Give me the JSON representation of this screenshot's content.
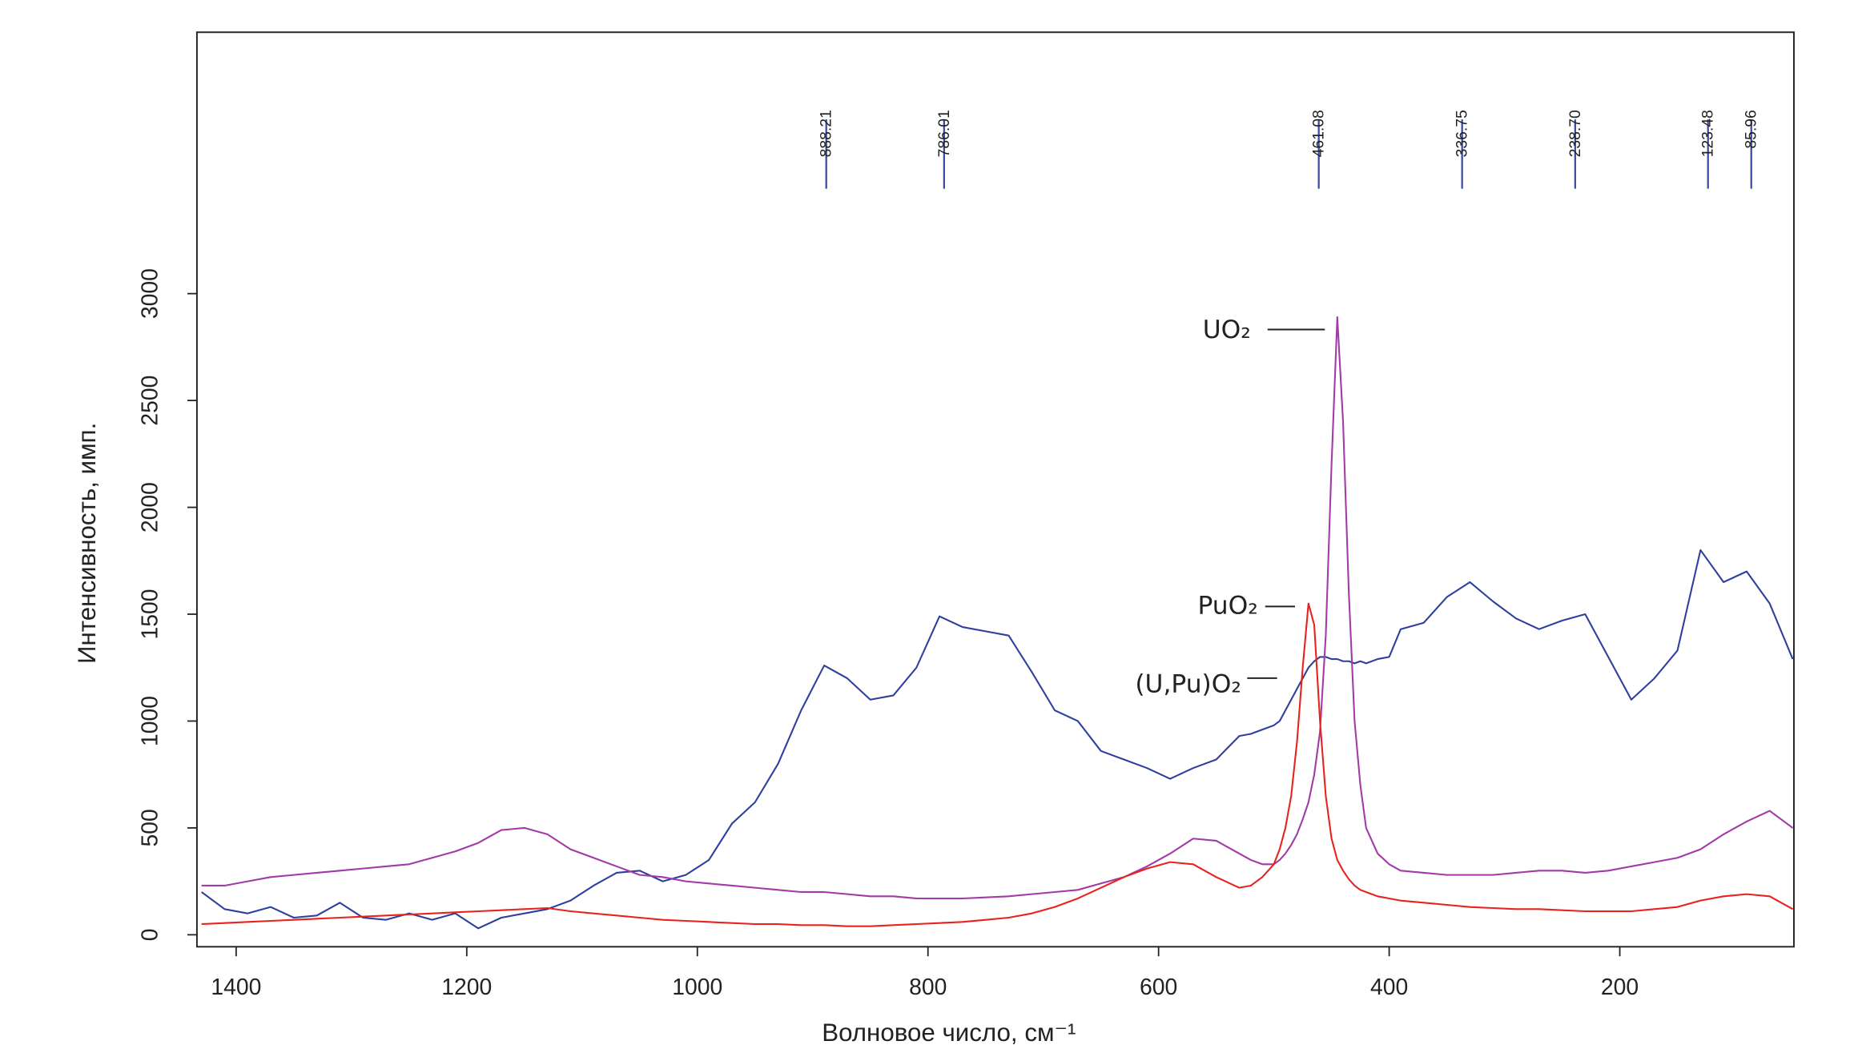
{
  "chart_data": {
    "type": "line",
    "xlabel": "Волновое число, см⁻¹",
    "ylabel": "Интенсивность, имп.",
    "x": [
      1430,
      1410,
      1390,
      1370,
      1350,
      1330,
      1310,
      1290,
      1270,
      1250,
      1230,
      1210,
      1190,
      1170,
      1150,
      1130,
      1110,
      1090,
      1070,
      1050,
      1030,
      1010,
      990,
      970,
      950,
      930,
      910,
      890,
      870,
      850,
      830,
      810,
      790,
      770,
      750,
      730,
      710,
      690,
      670,
      650,
      630,
      610,
      590,
      570,
      550,
      530,
      520,
      510,
      500,
      495,
      490,
      485,
      480,
      475,
      470,
      465,
      460,
      455,
      450,
      445,
      440,
      435,
      430,
      425,
      420,
      410,
      400,
      390,
      370,
      350,
      330,
      310,
      290,
      270,
      250,
      230,
      210,
      190,
      170,
      150,
      130,
      110,
      90,
      70,
      50
    ],
    "series": [
      {
        "name": "(U,Pu)O₂",
        "color": "#2f3f9e",
        "values": [
          200,
          120,
          100,
          130,
          80,
          90,
          150,
          80,
          70,
          100,
          70,
          100,
          30,
          80,
          100,
          120,
          160,
          230,
          290,
          300,
          250,
          280,
          350,
          520,
          620,
          800,
          1050,
          1260,
          1200,
          1100,
          1120,
          1250,
          1490,
          1440,
          1420,
          1400,
          1230,
          1050,
          1000,
          860,
          820,
          780,
          730,
          780,
          820,
          930,
          940,
          960,
          980,
          1000,
          1050,
          1100,
          1150,
          1200,
          1250,
          1280,
          1300,
          1300,
          1290,
          1290,
          1280,
          1280,
          1270,
          1280,
          1270,
          1290,
          1300,
          1430,
          1460,
          1580,
          1650,
          1560,
          1480,
          1430,
          1470,
          1500,
          1300,
          1100,
          1200,
          1330,
          1800,
          1650,
          1700,
          1550,
          1290
        ]
      },
      {
        "name": "UO₂",
        "color": "#a23aa8",
        "values": [
          230,
          230,
          250,
          270,
          280,
          290,
          300,
          310,
          320,
          330,
          360,
          390,
          430,
          490,
          500,
          470,
          400,
          360,
          320,
          280,
          270,
          250,
          240,
          230,
          220,
          210,
          200,
          200,
          190,
          180,
          180,
          170,
          170,
          170,
          175,
          180,
          190,
          200,
          210,
          240,
          270,
          320,
          380,
          450,
          440,
          380,
          350,
          330,
          330,
          350,
          380,
          420,
          470,
          540,
          620,
          750,
          950,
          1400,
          2200,
          2890,
          2400,
          1600,
          1000,
          700,
          500,
          380,
          330,
          300,
          290,
          280,
          280,
          280,
          290,
          300,
          300,
          290,
          300,
          320,
          340,
          360,
          400,
          470,
          530,
          580,
          500
        ]
      },
      {
        "name": "PuO₂",
        "color": "#e8231e",
        "values": [
          50,
          55,
          60,
          65,
          70,
          75,
          80,
          85,
          90,
          95,
          100,
          105,
          110,
          115,
          120,
          125,
          110,
          100,
          90,
          80,
          70,
          65,
          60,
          55,
          50,
          50,
          45,
          45,
          40,
          40,
          45,
          50,
          55,
          60,
          70,
          80,
          100,
          130,
          170,
          220,
          270,
          310,
          340,
          330,
          270,
          220,
          230,
          270,
          330,
          400,
          500,
          650,
          900,
          1250,
          1550,
          1450,
          1000,
          650,
          450,
          350,
          300,
          260,
          230,
          210,
          200,
          180,
          170,
          160,
          150,
          140,
          130,
          125,
          120,
          120,
          115,
          110,
          110,
          110,
          120,
          130,
          160,
          180,
          190,
          180,
          120
        ]
      }
    ],
    "peaks": [
      888.21,
      786.01,
      461.08,
      336.75,
      {
        "value": 238.7,
        "label": "238.70"
      },
      123.48,
      85.96
    ],
    "xlim": [
      1434,
      49
    ],
    "ylim": [
      -56,
      4223
    ],
    "xticks": [
      1400,
      1200,
      1000,
      800,
      600,
      400,
      200
    ],
    "yticks": [
      0,
      500,
      1000,
      1500,
      2000,
      2500,
      3000
    ]
  }
}
